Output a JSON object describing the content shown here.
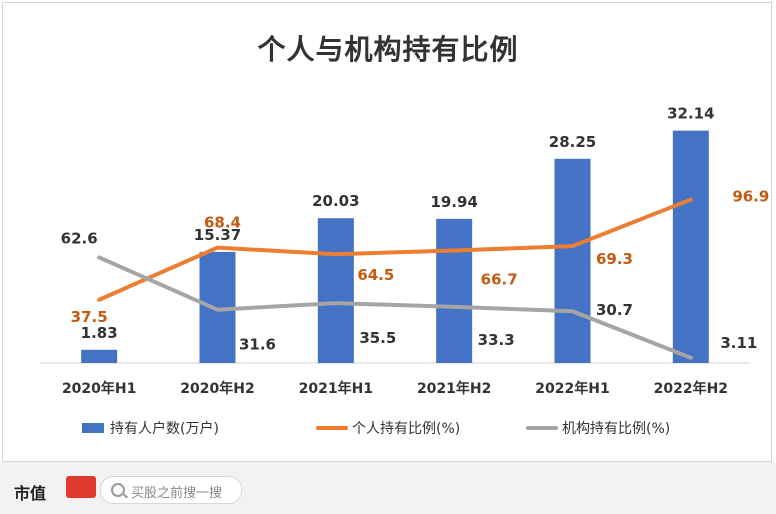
{
  "chart_data": {
    "type": "bar",
    "title": "个人与机构持有比例",
    "categories": [
      "2020年H1",
      "2020年H2",
      "2021年H1",
      "2021年H2",
      "2022年H1",
      "2022年H2"
    ],
    "series": [
      {
        "name": "持有人户数(万户)",
        "type": "bar",
        "axis": "left",
        "color": "#4472c4",
        "values": [
          1.83,
          15.37,
          20.03,
          19.94,
          28.25,
          32.14
        ],
        "label_color": "#333333"
      },
      {
        "name": "个人持有比例(%)",
        "type": "line",
        "axis": "right",
        "color": "#ed7d31",
        "values": [
          37.5,
          68.4,
          64.5,
          66.7,
          69.3,
          96.9
        ],
        "label_color": "#c55a11"
      },
      {
        "name": "机构持有比例(%)",
        "type": "line",
        "axis": "right",
        "color": "#a5a5a5",
        "values": [
          62.6,
          31.6,
          35.5,
          33.3,
          30.7,
          3.11
        ],
        "label_color": "#333333"
      }
    ],
    "y_left_range": [
      0,
      35
    ],
    "y_right_range": [
      0,
      150
    ],
    "legend": "bottom",
    "grid": false
  },
  "footer": {
    "brand": "市值",
    "search_placeholder": "买股之前搜一搜"
  }
}
